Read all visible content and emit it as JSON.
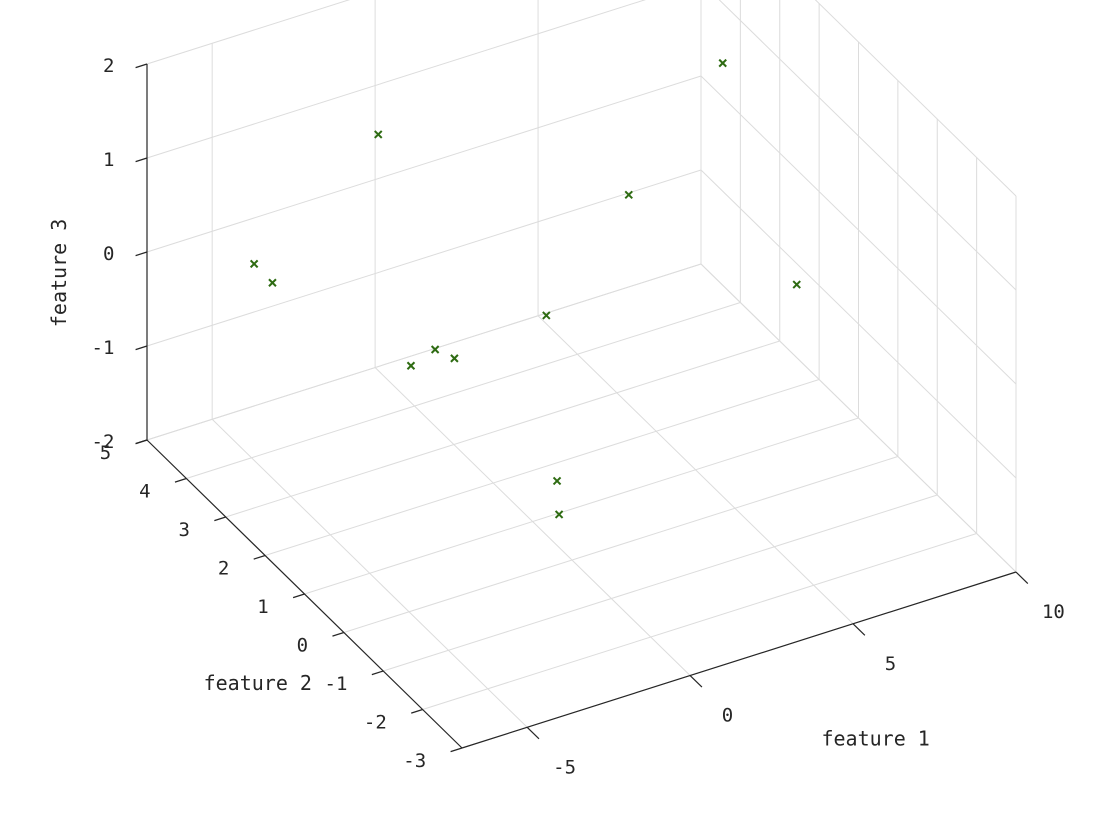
{
  "chart_data": {
    "type": "scatter3d",
    "title": "",
    "xlabel": "feature 1",
    "ylabel": "feature 2",
    "zlabel": "feature 3",
    "xlim": [
      -7,
      10
    ],
    "ylim": [
      -3,
      5
    ],
    "zlim": [
      -2,
      2
    ],
    "xticks": [
      -5,
      0,
      5,
      10
    ],
    "yticks": [
      -3,
      -2,
      -1,
      0,
      1,
      2,
      3,
      4,
      5
    ],
    "zticks": [
      -2,
      -1,
      0,
      1,
      2
    ],
    "grid": true,
    "marker": "x",
    "marker_color": "#2e6b12",
    "points": [
      {
        "x": -4.8,
        "y": 4.1,
        "z": 0.0
      },
      {
        "x": -4.6,
        "y": 3.8,
        "z": -0.1
      },
      {
        "x": -2.2,
        "y": 3.1,
        "z": 1.5
      },
      {
        "x": -2.4,
        "y": 1.0,
        "z": 0.0
      },
      {
        "x": -1.0,
        "y": -0.5,
        "z": -1.2
      },
      {
        "x": -0.7,
        "y": -0.2,
        "z": -1.0
      },
      {
        "x": 0.3,
        "y": 0.9,
        "z": 0.2
      },
      {
        "x": -1.8,
        "y": 2.6,
        "z": -0.8
      },
      {
        "x": -1.3,
        "y": 2.4,
        "z": -0.6
      },
      {
        "x": 4.4,
        "y": 2.2,
        "z": 0.5
      },
      {
        "x": 6.8,
        "y": 1.8,
        "z": 1.8
      },
      {
        "x": 7.5,
        "y": 0.5,
        "z": -0.1
      }
    ]
  }
}
